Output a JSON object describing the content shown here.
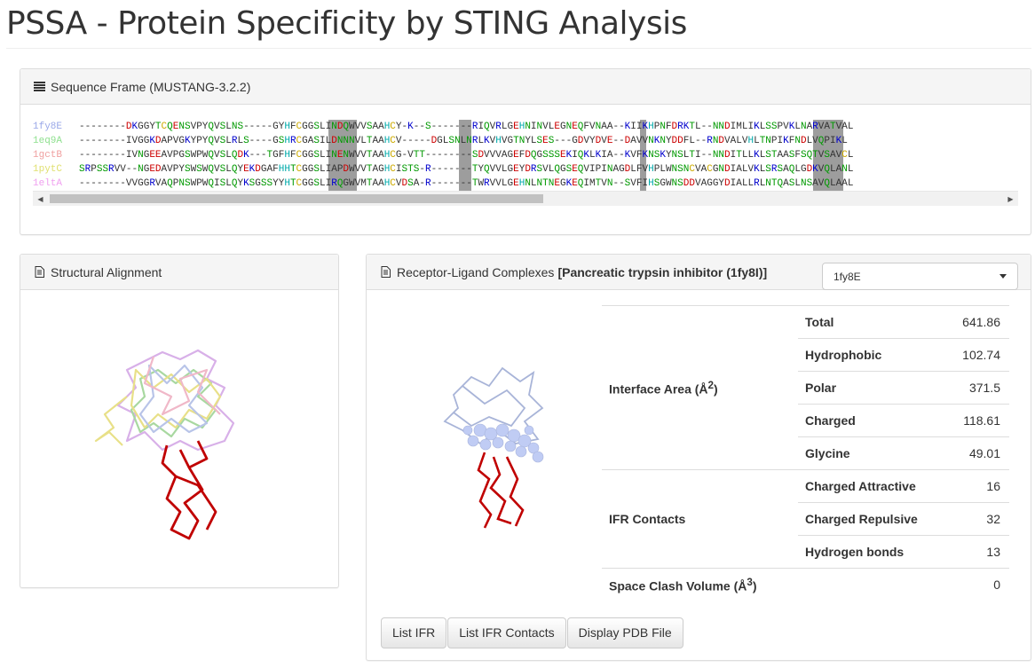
{
  "page": {
    "title": "PSSA - Protein Specificity by STING Analysis"
  },
  "sequence_frame": {
    "heading": "Sequence Frame (MUSTANG-3.2.2)",
    "rows": [
      {
        "name": "1fy8E",
        "seq": "--------DKGGYTCQENSVPYQVSLNS-----GYHFCGGSLINDQWVVSAAHCY-K--S-------RIQVRLGEHNINVLEGNEQFVNAA--KIIKHPNFDRKTL--NNDIMLIKLSSPVKLNARVATVAL",
        "name_color": "#9aa8e8"
      },
      {
        "name": "1eq9A",
        "seq": "--------IVGGKDAPVGKYPYQVSLRLS----GSHRCGASILDNNNVLTAAHCV-----DGLSNLNRLKVHVGTNYLSES---GDVYDVE--DAVVNKNYDDFL--RNDVALVHLTNPIKFNDLVQPIKL",
        "name_color": "#8fe08f"
      },
      {
        "name": "1gctB",
        "seq": "--------IVNGEEAVPGSWPWQVSLQDK---TGFHFCGGSLINENWVVTAAHCG-VTT--------SDVVVAGEFDQGSSSEKIQKLKIA--KVFKNSKYNSLTI--NNDITLLKLSTAASFSQTVSAVCL",
        "name_color": "#f0a0a0"
      },
      {
        "name": "1pytC",
        "seq": "SRPSSRVV--NGEDAVPYSWSWQVSLQYEKDGAFHHTCGGSLIAPDWVVTAGHCISTS-R-------TYQVVLGEYDRSVLQGSEQVIPINAGDLFVHPLWNSNCVACGNDIALVKLSRSAQLGDKVQLANL",
        "name_color": "#e0e070"
      },
      {
        "name": "1eltA",
        "seq": "--------VVGGRVAQPNSWPWQISLQYKSGSSYYHTCGGSLIRQGWVMTAAHCVDSA-R-------TWRVVLGEHNLNTNEGKEQIMTVN--SVFIHSGWNSDDVAGGYDIALLRLNTQASLNSAVQLAAL",
        "name_color": "#f0a0f0"
      }
    ],
    "scroll": {
      "left_arrow": "◀",
      "right_arrow": "▶"
    }
  },
  "structural_alignment": {
    "heading": "Structural Alignment"
  },
  "receptor_ligand": {
    "heading": "Receptor-Ligand Complexes",
    "heading_bold": "[Pancreatic trypsin inhibitor (1fy8I)]",
    "selected_chain": "1fy8E",
    "groups": {
      "interface_area": "Interface Area (Å",
      "interface_area_sup": "2",
      "interface_area_close": ")",
      "ifr_contacts": "IFR Contacts",
      "space_clash": "Space Clash Volume (Å",
      "space_clash_sup": "3",
      "space_clash_close": ")",
      "space_clash_value": "0"
    },
    "interface_rows": [
      {
        "label": "Total",
        "value": "641.86"
      },
      {
        "label": "Hydrophobic",
        "value": "102.74"
      },
      {
        "label": "Polar",
        "value": "371.5"
      },
      {
        "label": "Charged",
        "value": "118.61"
      },
      {
        "label": "Glycine",
        "value": "49.01"
      }
    ],
    "contact_rows": [
      {
        "label": "Charged Attractive",
        "value": "16"
      },
      {
        "label": "Charged Repulsive",
        "value": "32"
      },
      {
        "label": "Hydrogen bonds",
        "value": "13"
      }
    ],
    "buttons": {
      "list_ifr": "List IFR",
      "list_ifr_contacts": "List IFR Contacts",
      "display_pdb": "Display PDB File"
    }
  },
  "colors": {
    "hydrophobic": "#333333",
    "charged_neg": "#cc0000",
    "charged_pos": "#0000cc",
    "polar": "#009900",
    "cys": "#ccaa00",
    "his": "#00aaaa",
    "receptor": "#c00000",
    "ligand": "#b6c6f0"
  }
}
